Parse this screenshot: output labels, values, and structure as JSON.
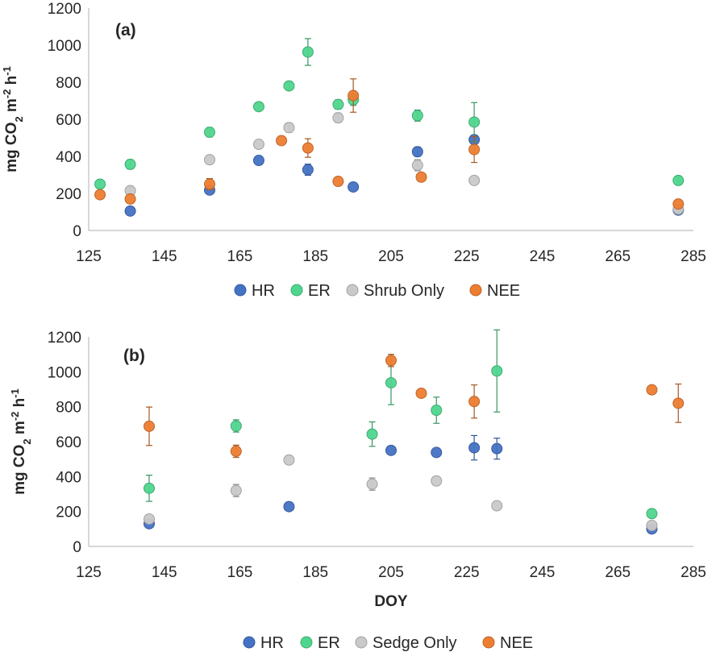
{
  "colors": {
    "HR": "#4472C4",
    "ER": "#4FD68E",
    "Shrub Only": "#C9C9C9",
    "Sedge Only": "#C9C9C9",
    "NEE": "#ED7D31"
  },
  "chart_data": [
    {
      "type": "scatter",
      "panel_label": "(a)",
      "ylabel_parts": [
        "mg CO",
        "2",
        " m",
        "-2",
        " h",
        "-1"
      ],
      "xlabel": "",
      "xlim": [
        125,
        285
      ],
      "ylim": [
        0,
        1200
      ],
      "x_ticks": [
        125,
        145,
        165,
        185,
        205,
        225,
        245,
        265,
        285
      ],
      "y_ticks": [
        0,
        200,
        400,
        600,
        800,
        1000,
        1200
      ],
      "grid": false,
      "legend": "bottom",
      "series": [
        {
          "name": "HR",
          "points": [
            {
              "x": 136,
              "y": 105
            },
            {
              "x": 157,
              "y": 218
            },
            {
              "x": 170,
              "y": 378
            },
            {
              "x": 183,
              "y": 328,
              "err": 30
            },
            {
              "x": 195,
              "y": 235
            },
            {
              "x": 212,
              "y": 425,
              "err": 25
            },
            {
              "x": 227,
              "y": 490
            },
            {
              "x": 281,
              "y": 110
            }
          ]
        },
        {
          "name": "ER",
          "points": [
            {
              "x": 128,
              "y": 250,
              "err": 20
            },
            {
              "x": 136,
              "y": 357,
              "err": 25
            },
            {
              "x": 157,
              "y": 530,
              "err": 25
            },
            {
              "x": 170,
              "y": 668,
              "err": 20
            },
            {
              "x": 178,
              "y": 780,
              "err": 20
            },
            {
              "x": 183,
              "y": 963,
              "err": 72
            },
            {
              "x": 191,
              "y": 680,
              "err": 25
            },
            {
              "x": 195,
              "y": 705,
              "err": 30
            },
            {
              "x": 212,
              "y": 620,
              "err": 30
            },
            {
              "x": 227,
              "y": 585,
              "err": 105
            },
            {
              "x": 281,
              "y": 270,
              "err": 20
            }
          ]
        },
        {
          "name": "Shrub Only",
          "points": [
            {
              "x": 136,
              "y": 215,
              "err": 20
            },
            {
              "x": 157,
              "y": 382
            },
            {
              "x": 170,
              "y": 465
            },
            {
              "x": 178,
              "y": 555,
              "err": 25
            },
            {
              "x": 191,
              "y": 608,
              "err": 25
            },
            {
              "x": 212,
              "y": 352,
              "err": 30
            },
            {
              "x": 227,
              "y": 270
            },
            {
              "x": 281,
              "y": 115
            }
          ]
        },
        {
          "name": "NEE",
          "points": [
            {
              "x": 128,
              "y": 193
            },
            {
              "x": 136,
              "y": 170
            },
            {
              "x": 157,
              "y": 250,
              "err": 30
            },
            {
              "x": 176,
              "y": 485
            },
            {
              "x": 183,
              "y": 445,
              "err": 50
            },
            {
              "x": 191,
              "y": 265
            },
            {
              "x": 195,
              "y": 728,
              "err": 90
            },
            {
              "x": 213,
              "y": 288
            },
            {
              "x": 227,
              "y": 437,
              "err": 70
            },
            {
              "x": 281,
              "y": 143
            }
          ]
        }
      ]
    },
    {
      "type": "scatter",
      "panel_label": "(b)",
      "ylabel_parts": [
        "mg CO",
        "2",
        " m",
        "-2",
        " h",
        "-1"
      ],
      "xlabel": "DOY",
      "xlim": [
        125,
        285
      ],
      "ylim": [
        0,
        1200
      ],
      "x_ticks": [
        125,
        145,
        165,
        185,
        205,
        225,
        245,
        265,
        285
      ],
      "y_ticks": [
        0,
        200,
        400,
        600,
        800,
        1000,
        1200
      ],
      "grid": false,
      "legend": "bottom",
      "series": [
        {
          "name": "HR",
          "points": [
            {
              "x": 141,
              "y": 130
            },
            {
              "x": 178,
              "y": 228
            },
            {
              "x": 205,
              "y": 550
            },
            {
              "x": 217,
              "y": 538
            },
            {
              "x": 227,
              "y": 565,
              "err": 70
            },
            {
              "x": 233,
              "y": 560,
              "err": 60
            },
            {
              "x": 274,
              "y": 100
            }
          ]
        },
        {
          "name": "ER",
          "points": [
            {
              "x": 141,
              "y": 333,
              "err": 75
            },
            {
              "x": 164,
              "y": 690,
              "err": 35
            },
            {
              "x": 200,
              "y": 643,
              "err": 70
            },
            {
              "x": 205,
              "y": 937,
              "err": 125
            },
            {
              "x": 217,
              "y": 780,
              "err": 75
            },
            {
              "x": 233,
              "y": 1005,
              "err": 235
            },
            {
              "x": 274,
              "y": 188
            }
          ]
        },
        {
          "name": "Sedge Only",
          "points": [
            {
              "x": 141,
              "y": 157
            },
            {
              "x": 164,
              "y": 320,
              "err": 35
            },
            {
              "x": 178,
              "y": 495
            },
            {
              "x": 200,
              "y": 357,
              "err": 35
            },
            {
              "x": 217,
              "y": 375
            },
            {
              "x": 233,
              "y": 233
            },
            {
              "x": 274,
              "y": 120
            }
          ]
        },
        {
          "name": "NEE",
          "points": [
            {
              "x": 141,
              "y": 688,
              "err": 110
            },
            {
              "x": 164,
              "y": 545,
              "err": 35
            },
            {
              "x": 205,
              "y": 1065,
              "err": 35
            },
            {
              "x": 213,
              "y": 877
            },
            {
              "x": 227,
              "y": 830,
              "err": 95
            },
            {
              "x": 274,
              "y": 897
            },
            {
              "x": 281,
              "y": 820,
              "err": 110
            }
          ]
        }
      ]
    }
  ]
}
